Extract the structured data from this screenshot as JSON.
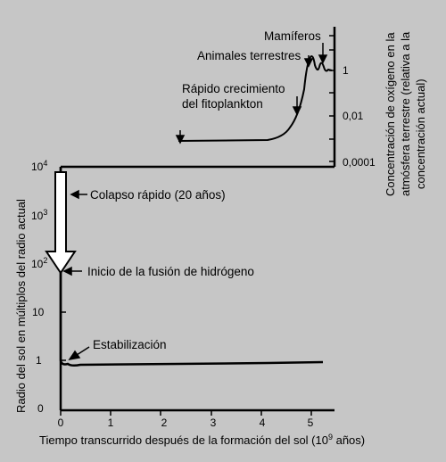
{
  "chart_data": [
    {
      "type": "line",
      "title": "",
      "xlabel": "Tiempo transcurrido después de la formación del sol (10⁹ años)",
      "ylabel": "Radio del sol en múltiplos del radio actual",
      "x_ticks": [
        "0",
        "1",
        "2",
        "3",
        "4",
        "5"
      ],
      "y_ticks": [
        "0",
        "1",
        "10",
        "10²",
        "10³",
        "10⁴"
      ],
      "xlim": [
        0,
        5.5
      ],
      "y_scale": "log",
      "series": [
        {
          "x": [
            0,
            0,
            0,
            0,
            0.02,
            0.05,
            0.15,
            0.3,
            1.0,
            2.0,
            3.0,
            4.0,
            5.0,
            5.3
          ],
          "y": [
            10000,
            1000,
            100,
            10,
            1.2,
            0.95,
            0.85,
            0.8,
            0.82,
            0.83,
            0.83,
            0.84,
            0.85,
            0.85
          ]
        }
      ],
      "annotations": [
        "Colapso rápido (20 años)",
        "Inicio de la fusión de hidrógeno",
        "Estabilización"
      ]
    },
    {
      "type": "line",
      "title": "",
      "ylabel": "Concentración de oxígeno en la atmósfera terrestre (relativa a la concentración actual)",
      "y_ticks": [
        "1",
        "0,01",
        "0,0001"
      ],
      "y_scale": "log",
      "series": [
        {
          "x": [
            2.4,
            3.0,
            3.6,
            4.0,
            4.3,
            4.6,
            4.8,
            4.9,
            5.0,
            5.1,
            5.2,
            5.3
          ],
          "y": [
            5e-05,
            6e-05,
            7e-05,
            0.00015,
            0.0008,
            0.005,
            0.02,
            0.4,
            2.5,
            0.5,
            0.8,
            1.0
          ]
        }
      ],
      "annotations": [
        "Mamíferos",
        "Animales terrestres",
        "Rápido crecimiento",
        "del fitoplankton"
      ]
    }
  ],
  "labels": {
    "colapso": "Colapso rápido (20 años)",
    "fusion": "Inicio de la fusión de hidrógeno",
    "estabilizacion": "Estabilización",
    "mamiferos": "Mamíferos",
    "animales": "Animales terrestres",
    "fito1": "Rápido crecimiento",
    "fito2": "del fitoplankton",
    "xlabel": "Tiempo transcurrido después de la formación del sol (10",
    "xlabel_sup": "9",
    "xlabel_end": " años)",
    "ylabel": "Radio del sol en múltiplos del radio actual",
    "rlabel1": "Concentración de oxígeno en la",
    "rlabel2": "atmósfera terrestre (relativa a la",
    "rlabel3": "concentración actual)"
  },
  "colors": {
    "background": "#c6c6c6",
    "ink": "#000000",
    "arrow_fill": "#ffffff"
  }
}
